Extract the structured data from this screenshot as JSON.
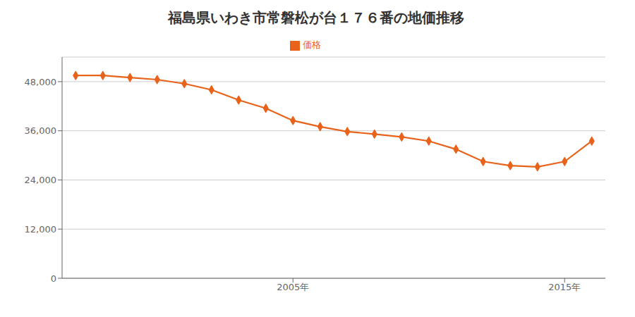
{
  "chart_data": {
    "type": "line",
    "title": "福島県いわき市常磐松が台１７６番の地価推移",
    "x": [
      1997,
      1998,
      1999,
      2000,
      2001,
      2002,
      2003,
      2004,
      2005,
      2006,
      2007,
      2008,
      2009,
      2010,
      2011,
      2012,
      2013,
      2014,
      2015,
      2016
    ],
    "series": [
      {
        "name": "価格",
        "color": "#e8621a",
        "marker": "diamond",
        "values": [
          49500,
          49500,
          49000,
          48500,
          47500,
          46000,
          43500,
          41500,
          38500,
          37000,
          35800,
          35200,
          34500,
          33500,
          31500,
          28500,
          27500,
          27200,
          28500,
          33500
        ]
      }
    ],
    "xlim": [
      1996.5,
      2016.5
    ],
    "xticks": [
      {
        "value": 2005,
        "label": "2005年"
      },
      {
        "value": 2015,
        "label": "2015年"
      }
    ],
    "ylim": [
      0,
      54000
    ],
    "yticks": [
      0,
      {
        "value": 12000,
        "label": "12,000"
      },
      {
        "value": 24000,
        "label": "24,000"
      },
      {
        "value": 36000,
        "label": "36,000"
      },
      {
        "value": 48000,
        "label": "48,000"
      }
    ],
    "grid": true,
    "legend": "top"
  }
}
